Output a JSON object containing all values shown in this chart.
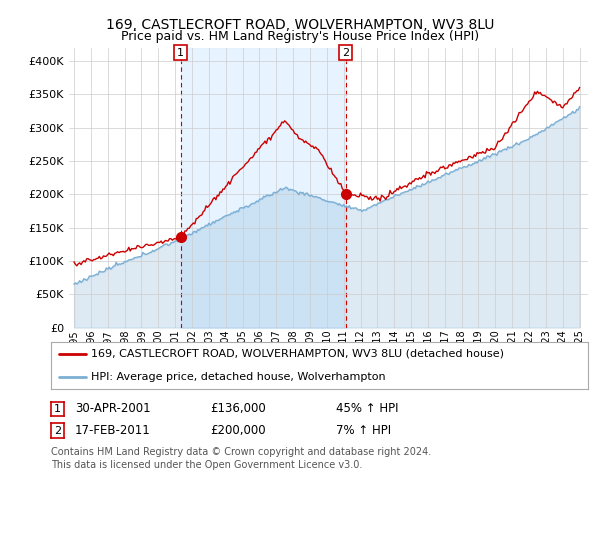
{
  "title1": "169, CASTLECROFT ROAD, WOLVERHAMPTON, WV3 8LU",
  "title2": "Price paid vs. HM Land Registry's House Price Index (HPI)",
  "ylim": [
    0,
    420000
  ],
  "yticks": [
    0,
    50000,
    100000,
    150000,
    200000,
    250000,
    300000,
    350000,
    400000
  ],
  "ytick_labels": [
    "£0",
    "£50K",
    "£100K",
    "£150K",
    "£200K",
    "£250K",
    "£300K",
    "£350K",
    "£400K"
  ],
  "sale1_year": 2001.33,
  "sale1_value": 136000,
  "sale2_year": 2011.12,
  "sale2_value": 200000,
  "hpi_color": "#7bafd4",
  "hpi_fill_color": "#ddeeff",
  "price_color": "#cc0000",
  "annotation_color": "#cc0000",
  "background_color": "#ffffff",
  "plot_bg_color": "#ffffff",
  "grid_color": "#cccccc",
  "legend_label1": "169, CASTLECROFT ROAD, WOLVERHAMPTON, WV3 8LU (detached house)",
  "legend_label2": "HPI: Average price, detached house, Wolverhampton",
  "table_row1": [
    "1",
    "30-APR-2001",
    "£136,000",
    "45% ↑ HPI"
  ],
  "table_row2": [
    "2",
    "17-FEB-2011",
    "£200,000",
    "7% ↑ HPI"
  ],
  "footnote": "Contains HM Land Registry data © Crown copyright and database right 2024.\nThis data is licensed under the Open Government Licence v3.0.",
  "title1_fontsize": 10,
  "title2_fontsize": 9,
  "tick_fontsize": 8,
  "legend_fontsize": 8,
  "table_fontsize": 8.5,
  "footnote_fontsize": 7
}
